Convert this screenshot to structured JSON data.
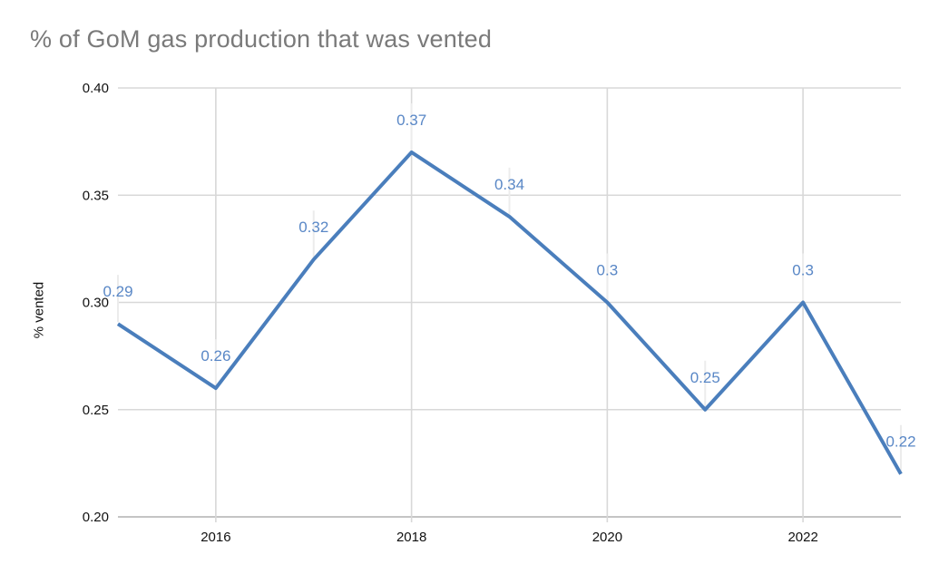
{
  "title": "% of GoM gas production that was vented",
  "colors": {
    "background": "#ffffff",
    "line": "#4a7ebc",
    "data_label": "#5987c6",
    "title_text": "#7a7a7a",
    "tick_label": "#111111",
    "gridline": "#d8d8d8",
    "axis_line": "#b0b0b0",
    "leader_line": "#ececec"
  },
  "chart_data": {
    "type": "line",
    "title": "% of GoM gas production that was vented",
    "xlabel": "",
    "ylabel": "% vented",
    "x": [
      2015,
      2016,
      2017,
      2018,
      2019,
      2020,
      2021,
      2022,
      2023
    ],
    "values": [
      0.29,
      0.26,
      0.32,
      0.37,
      0.34,
      0.3,
      0.25,
      0.3,
      0.22
    ],
    "point_labels": [
      "0.29",
      "0.26",
      "0.32",
      "0.37",
      "0.34",
      "0.3",
      "0.25",
      "0.3",
      "0.22"
    ],
    "xlim": [
      2015,
      2023
    ],
    "ylim": [
      0.2,
      0.4
    ],
    "x_ticks": [
      2016,
      2018,
      2020,
      2022
    ],
    "x_tick_labels": [
      "2016",
      "2018",
      "2020",
      "2022"
    ],
    "y_ticks": [
      0.2,
      0.25,
      0.3,
      0.35,
      0.4
    ],
    "y_tick_labels": [
      "0.20",
      "0.25",
      "0.30",
      "0.35",
      "0.40"
    ],
    "grid": true,
    "legend": "none",
    "series_name": "% vented"
  }
}
